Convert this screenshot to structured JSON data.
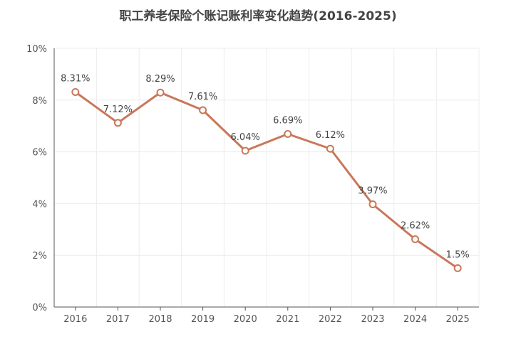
{
  "chart_data": {
    "type": "line",
    "title": "职工养老保险个账记账利率变化趋势(2016-2025)",
    "xlabel": "",
    "ylabel": "",
    "categories": [
      "2016",
      "2017",
      "2018",
      "2019",
      "2020",
      "2021",
      "2022",
      "2023",
      "2024",
      "2025"
    ],
    "series": [
      {
        "values": [
          8.31,
          7.12,
          8.29,
          7.61,
          6.04,
          6.69,
          6.12,
          3.97,
          2.62,
          1.5
        ],
        "data_labels": [
          "8.31%",
          "7.12%",
          "8.29%",
          "7.61%",
          "6.04%",
          "6.69%",
          "6.12%",
          "3.97%",
          "2.62%",
          "1.5%"
        ]
      }
    ],
    "ylim": [
      0,
      10
    ],
    "y_ticks": [
      0,
      2,
      4,
      6,
      8,
      10
    ],
    "y_tick_labels": [
      "0%",
      "2%",
      "4%",
      "6%",
      "8%",
      "10%"
    ],
    "grid": true,
    "legend": "none",
    "colors": {
      "line": "#c9775a",
      "marker_fill": "#ffffff",
      "grid": "#ececec",
      "axis": "#555555",
      "text": "#555555",
      "title": "#444444"
    }
  }
}
